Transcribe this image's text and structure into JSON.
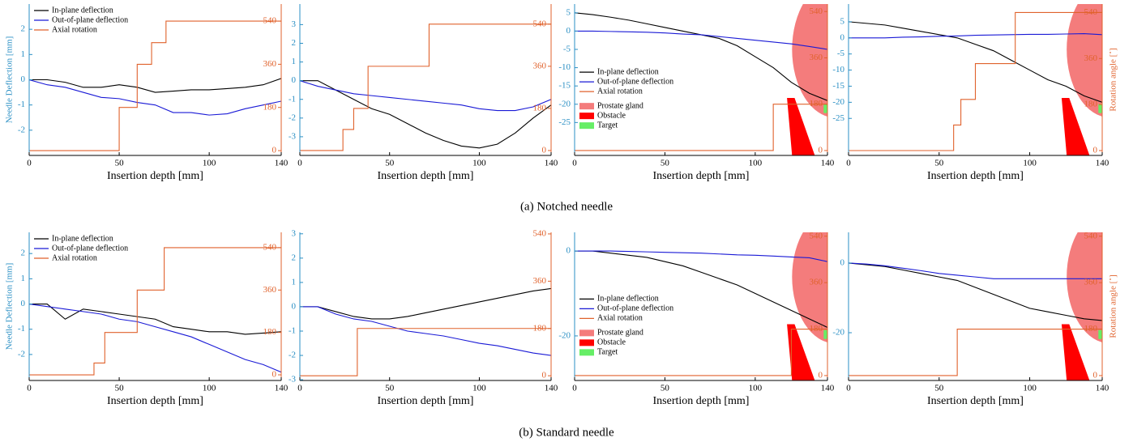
{
  "captions": [
    "(a)  Notched needle",
    "(b)  Standard needle"
  ],
  "chart_data": [
    {
      "type": "line",
      "xlabel": "Insertion depth [mm]",
      "ylabel": "Needle Deflection [mm]",
      "legend": "upper left",
      "x": [
        0,
        10,
        20,
        30,
        40,
        50,
        60,
        70,
        80,
        90,
        100,
        110,
        120,
        130,
        140
      ],
      "xlim": [
        0,
        140
      ],
      "xticks": [
        0,
        50,
        100,
        140
      ],
      "ylim": [
        -3,
        3
      ],
      "yticks": [
        -2,
        -1,
        0,
        1,
        2
      ],
      "y2lim": [
        -20,
        611
      ],
      "y2ticks": [
        0,
        180,
        360,
        540
      ],
      "series": [
        {
          "name": "In-plane deflection",
          "color": "#000000",
          "values": [
            0,
            0,
            -0.1,
            -0.3,
            -0.3,
            -0.2,
            -0.3,
            -0.5,
            -0.45,
            -0.4,
            -0.4,
            -0.35,
            -0.3,
            -0.2,
            0.05
          ]
        },
        {
          "name": "Out-of-plane deflection",
          "color": "#1a1ad6",
          "values": [
            0,
            -0.2,
            -0.3,
            -0.5,
            -0.7,
            -0.75,
            -0.9,
            -1.0,
            -1.3,
            -1.3,
            -1.4,
            -1.35,
            -1.15,
            -1.0,
            -0.85
          ]
        },
        {
          "name": "Axial rotation",
          "color": "#e0622c",
          "axis": "y2",
          "x": [
            0,
            50,
            50,
            60,
            60,
            68,
            68,
            76,
            76,
            140
          ],
          "values": [
            0,
            0,
            180,
            180,
            360,
            360,
            450,
            450,
            540,
            540
          ]
        }
      ]
    },
    {
      "type": "line",
      "xlabel": "Insertion depth [mm]",
      "x": [
        0,
        10,
        20,
        30,
        40,
        50,
        60,
        70,
        80,
        90,
        100,
        110,
        120,
        130,
        140
      ],
      "xlim": [
        0,
        140
      ],
      "xticks": [
        0,
        50,
        100,
        140
      ],
      "ylim": [
        -4,
        4.1
      ],
      "yticks": [
        -3,
        -2,
        -1,
        0,
        1,
        2,
        3
      ],
      "y2lim": [
        -21,
        626
      ],
      "y2ticks": [
        0,
        180,
        360,
        540
      ],
      "series": [
        {
          "color": "#000000",
          "values": [
            0,
            0,
            -0.5,
            -1.0,
            -1.5,
            -1.8,
            -2.3,
            -2.8,
            -3.2,
            -3.5,
            -3.6,
            -3.4,
            -2.8,
            -2.0,
            -1.3
          ]
        },
        {
          "color": "#1a1ad6",
          "values": [
            0,
            -0.3,
            -0.5,
            -0.7,
            -0.8,
            -0.9,
            -1.0,
            -1.1,
            -1.2,
            -1.3,
            -1.5,
            -1.6,
            -1.6,
            -1.4,
            -1.0
          ]
        },
        {
          "color": "#e0622c",
          "axis": "y2",
          "x": [
            0,
            24,
            24,
            30,
            30,
            38,
            38,
            72,
            72,
            140
          ],
          "values": [
            0,
            0,
            90,
            90,
            180,
            180,
            360,
            360,
            540,
            540
          ]
        }
      ]
    },
    {
      "type": "line",
      "xlabel": "Insertion depth [mm]",
      "legend": "center left",
      "x": [
        0,
        10,
        20,
        30,
        40,
        50,
        60,
        70,
        80,
        90,
        100,
        110,
        120,
        130,
        140
      ],
      "xlim": [
        0,
        140
      ],
      "xticks": [
        0,
        50,
        100,
        140
      ],
      "ylim": [
        -34,
        7.4
      ],
      "yticks": [
        -25,
        -20,
        -15,
        -10,
        -5,
        0,
        5
      ],
      "y2lim": [
        -19,
        569
      ],
      "y2ticks": [
        0,
        180,
        360,
        540
      ],
      "series": [
        {
          "name": "In-plane deflection",
          "color": "#000000",
          "values": [
            5,
            4.5,
            3.8,
            3,
            2,
            1,
            0,
            -1,
            -2,
            -4,
            -7,
            -10,
            -14,
            -17,
            -19
          ]
        },
        {
          "name": "Out-of-plane deflection",
          "color": "#1a1ad6",
          "values": [
            0,
            0,
            -0.1,
            -0.2,
            -0.3,
            -0.5,
            -0.8,
            -1,
            -1.5,
            -2,
            -2.5,
            -3,
            -3.5,
            -4.2,
            -5
          ]
        },
        {
          "name": "Axial rotation",
          "color": "#e0622c",
          "axis": "y2",
          "x": [
            0,
            110,
            110,
            140
          ],
          "values": [
            0,
            0,
            180,
            180
          ]
        }
      ],
      "regions": [
        {
          "name": "Prostate gland",
          "color": "#f47c7c"
        },
        {
          "name": "Obstacle",
          "color": "#ff0000"
        },
        {
          "name": "Target",
          "color": "#66ee66"
        }
      ]
    },
    {
      "type": "line",
      "xlabel": "Insertion depth [mm]",
      "y2label": "Rotation angle [˚]",
      "x": [
        0,
        10,
        20,
        30,
        40,
        50,
        60,
        70,
        80,
        90,
        100,
        110,
        120,
        130,
        140
      ],
      "xlim": [
        0,
        140
      ],
      "xticks": [
        0,
        50,
        100,
        140
      ],
      "ylim": [
        -36.5,
        10.5
      ],
      "yticks": [
        -25,
        -20,
        -15,
        -10,
        -5,
        0,
        5
      ],
      "y2lim": [
        -19,
        573
      ],
      "y2ticks": [
        0,
        180,
        360,
        540
      ],
      "series": [
        {
          "color": "#000000",
          "values": [
            5,
            4.5,
            4,
            3,
            2,
            1,
            0,
            -2,
            -4,
            -7,
            -10,
            -13,
            -15,
            -18,
            -20
          ]
        },
        {
          "color": "#1a1ad6",
          "values": [
            0,
            0,
            0,
            0.2,
            0.3,
            0.5,
            0.6,
            0.8,
            0.9,
            1,
            1.1,
            1.1,
            1.2,
            1.3,
            1.0
          ]
        },
        {
          "color": "#e0622c",
          "axis": "y2",
          "x": [
            0,
            58,
            58,
            62,
            62,
            70,
            70,
            92,
            92,
            140
          ],
          "values": [
            0,
            0,
            100,
            100,
            200,
            200,
            340,
            340,
            540,
            540
          ]
        }
      ],
      "regions": [
        {
          "color": "#f47c7c"
        },
        {
          "color": "#ff0000"
        },
        {
          "color": "#66ee66"
        }
      ]
    },
    {
      "type": "line",
      "xlabel": "Insertion depth [mm]",
      "ylabel": "Needle Deflection [mm]",
      "legend": "upper left",
      "x": [
        0,
        10,
        20,
        30,
        40,
        50,
        60,
        70,
        80,
        90,
        100,
        110,
        120,
        130,
        140
      ],
      "xlim": [
        0,
        140
      ],
      "xticks": [
        0,
        50,
        100,
        140
      ],
      "ylim": [
        -3.03,
        2.84
      ],
      "yticks": [
        -2,
        -1,
        0,
        1,
        2
      ],
      "y2lim": [
        -24,
        605
      ],
      "y2ticks": [
        0,
        180,
        360,
        540
      ],
      "series": [
        {
          "name": "In-plane deflection",
          "color": "#000000",
          "values": [
            0,
            0,
            -0.6,
            -0.2,
            -0.3,
            -0.4,
            -0.5,
            -0.6,
            -0.9,
            -1.0,
            -1.1,
            -1.1,
            -1.2,
            -1.15,
            -1.1
          ]
        },
        {
          "name": "Out-of-plane deflection",
          "color": "#1a1ad6",
          "values": [
            0,
            -0.1,
            -0.2,
            -0.3,
            -0.4,
            -0.6,
            -0.7,
            -0.9,
            -1.1,
            -1.3,
            -1.6,
            -1.9,
            -2.2,
            -2.4,
            -2.7
          ]
        },
        {
          "name": "Axial rotation",
          "color": "#e0622c",
          "axis": "y2",
          "x": [
            0,
            36,
            36,
            42,
            42,
            60,
            60,
            75,
            75,
            140
          ],
          "values": [
            0,
            0,
            50,
            50,
            180,
            180,
            360,
            360,
            540,
            540
          ]
        }
      ]
    },
    {
      "type": "line",
      "xlabel": "Insertion depth [mm]",
      "x": [
        0,
        10,
        20,
        30,
        40,
        50,
        60,
        70,
        80,
        90,
        100,
        110,
        120,
        130,
        140
      ],
      "xlim": [
        0,
        140
      ],
      "xticks": [
        0,
        50,
        100,
        140
      ],
      "ylim": [
        -3.03,
        3.06
      ],
      "yticks": [
        -3,
        -2,
        -1,
        0,
        1,
        2,
        3
      ],
      "y2lim": [
        -18,
        546
      ],
      "y2ticks": [
        0,
        180,
        360,
        540
      ],
      "series": [
        {
          "color": "#000000",
          "values": [
            0,
            0,
            -0.2,
            -0.4,
            -0.5,
            -0.5,
            -0.4,
            -0.25,
            -0.1,
            0.05,
            0.2,
            0.35,
            0.5,
            0.65,
            0.75
          ]
        },
        {
          "color": "#1a1ad6",
          "values": [
            0,
            0,
            -0.3,
            -0.5,
            -0.6,
            -0.8,
            -1.0,
            -1.1,
            -1.2,
            -1.35,
            -1.5,
            -1.6,
            -1.75,
            -1.9,
            -2.0
          ]
        },
        {
          "color": "#e0622c",
          "axis": "y2",
          "x": [
            0,
            32,
            32,
            140
          ],
          "values": [
            0,
            0,
            180,
            180
          ]
        }
      ]
    },
    {
      "type": "line",
      "xlabel": "Insertion depth [mm]",
      "legend": "center left",
      "x": [
        0,
        10,
        20,
        30,
        40,
        50,
        60,
        70,
        80,
        90,
        100,
        110,
        120,
        130,
        140
      ],
      "xlim": [
        0,
        140
      ],
      "xticks": [
        0,
        50,
        100,
        140
      ],
      "ylim": [
        -30.5,
        4.4
      ],
      "yticks": [
        -20,
        0
      ],
      "y2lim": [
        -19,
        555
      ],
      "y2ticks": [
        0,
        180,
        360,
        540
      ],
      "series": [
        {
          "name": "In-plane deflection",
          "color": "#000000",
          "values": [
            0,
            0,
            -0.5,
            -1,
            -1.5,
            -2.5,
            -3.5,
            -5,
            -6.5,
            -8,
            -10,
            -12,
            -14,
            -16,
            -18
          ]
        },
        {
          "name": "Out-of-plane deflection",
          "color": "#1a1ad6",
          "values": [
            0,
            0,
            0,
            -0.1,
            -0.2,
            -0.3,
            -0.4,
            -0.5,
            -0.7,
            -0.9,
            -1,
            -1.2,
            -1.4,
            -1.6,
            -2.5
          ]
        },
        {
          "name": "Axial rotation",
          "color": "#e0622c",
          "axis": "y2",
          "x": [
            0,
            120,
            120,
            140
          ],
          "values": [
            0,
            0,
            180,
            180
          ]
        }
      ],
      "regions": [
        {
          "name": "Prostate gland",
          "color": "#f47c7c"
        },
        {
          "name": "Obstacle",
          "color": "#ff0000"
        },
        {
          "name": "Target",
          "color": "#66ee66"
        }
      ]
    },
    {
      "type": "line",
      "xlabel": "Insertion depth [mm]",
      "y2label": "Rotation angle [˚]",
      "x": [
        0,
        10,
        20,
        30,
        40,
        50,
        60,
        70,
        80,
        90,
        100,
        110,
        120,
        130,
        140
      ],
      "xlim": [
        0,
        140
      ],
      "xticks": [
        0,
        50,
        100,
        140
      ],
      "ylim": [
        -33.7,
        8.8
      ],
      "yticks": [
        -20,
        0
      ],
      "y2lim": [
        -19,
        555
      ],
      "y2ticks": [
        0,
        180,
        360,
        540
      ],
      "series": [
        {
          "color": "#000000",
          "values": [
            0,
            -0.5,
            -1,
            -2,
            -3,
            -4,
            -5,
            -7,
            -9,
            -11,
            -13,
            -14,
            -15,
            -16,
            -16.5
          ]
        },
        {
          "color": "#1a1ad6",
          "values": [
            0,
            -0.3,
            -0.8,
            -1.5,
            -2.2,
            -3,
            -3.5,
            -4,
            -4.5,
            -4.5,
            -4.5,
            -4.5,
            -4.5,
            -4.5,
            -4.5
          ]
        },
        {
          "color": "#e0622c",
          "axis": "y2",
          "x": [
            0,
            60,
            60,
            140
          ],
          "values": [
            0,
            0,
            180,
            180
          ]
        }
      ],
      "regions": [
        {
          "color": "#f47c7c"
        },
        {
          "color": "#ff0000"
        },
        {
          "color": "#66ee66"
        }
      ]
    }
  ]
}
